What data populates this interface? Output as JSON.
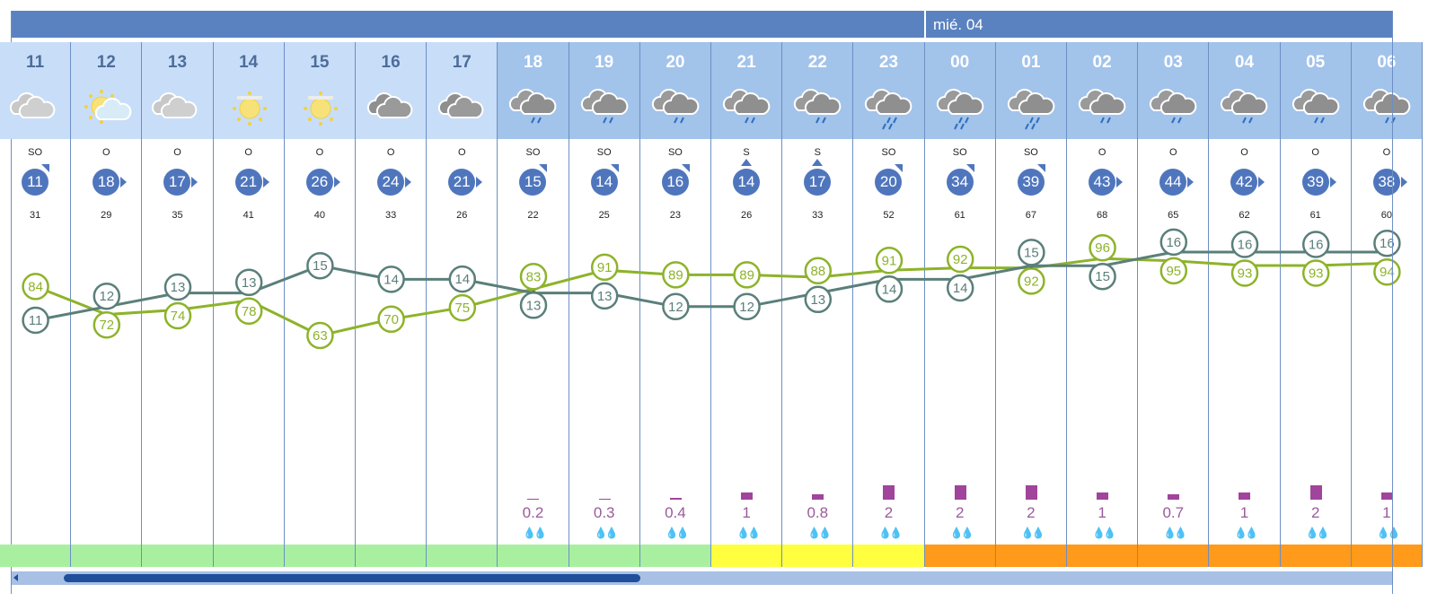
{
  "header": {
    "date_label": "mié. 04"
  },
  "colors": {
    "temperature": "#5a7f7a",
    "humidity": "#8db32a",
    "wind": "#4f76bd",
    "precip": "#a0449c",
    "risk_green": "#a8f0a0",
    "risk_yellow": "#ffff40",
    "risk_orange": "#ff9a1a"
  },
  "hours": [
    {
      "hour": "11",
      "sky": "cloudy",
      "wind_dir": "SO",
      "wind": "11",
      "arrow": "ne",
      "gust": "31",
      "temp": 11,
      "hum": 84,
      "precip": null,
      "risk": "green"
    },
    {
      "hour": "12",
      "sky": "partly-sunny",
      "wind_dir": "O",
      "wind": "18",
      "arrow": "e",
      "gust": "29",
      "temp": 12,
      "hum": 72,
      "precip": null,
      "risk": "green"
    },
    {
      "hour": "13",
      "sky": "cloudy",
      "wind_dir": "O",
      "wind": "17",
      "arrow": "e",
      "gust": "35",
      "temp": 13,
      "hum": 74,
      "precip": null,
      "risk": "green"
    },
    {
      "hour": "14",
      "sky": "hazy-sun",
      "wind_dir": "O",
      "wind": "21",
      "arrow": "e",
      "gust": "41",
      "temp": 13,
      "hum": 78,
      "precip": null,
      "risk": "green"
    },
    {
      "hour": "15",
      "sky": "hazy-sun",
      "wind_dir": "O",
      "wind": "26",
      "arrow": "e",
      "gust": "40",
      "temp": 15,
      "hum": 63,
      "precip": null,
      "risk": "green"
    },
    {
      "hour": "16",
      "sky": "overcast",
      "wind_dir": "O",
      "wind": "24",
      "arrow": "e",
      "gust": "33",
      "temp": 14,
      "hum": 70,
      "precip": null,
      "risk": "green"
    },
    {
      "hour": "17",
      "sky": "overcast",
      "wind_dir": "O",
      "wind": "21",
      "arrow": "e",
      "gust": "26",
      "temp": 14,
      "hum": 75,
      "precip": null,
      "risk": "green"
    },
    {
      "hour": "18",
      "sky": "light-rain",
      "wind_dir": "SO",
      "wind": "15",
      "arrow": "ne",
      "gust": "22",
      "temp": 13,
      "hum": 83,
      "precip": "0.2",
      "risk": "green"
    },
    {
      "hour": "19",
      "sky": "light-rain",
      "wind_dir": "SO",
      "wind": "14",
      "arrow": "ne",
      "gust": "25",
      "temp": 13,
      "hum": 91,
      "precip": "0.3",
      "risk": "green"
    },
    {
      "hour": "20",
      "sky": "light-rain",
      "wind_dir": "SO",
      "wind": "16",
      "arrow": "ne",
      "gust": "23",
      "temp": 12,
      "hum": 89,
      "precip": "0.4",
      "risk": "green"
    },
    {
      "hour": "21",
      "sky": "light-rain",
      "wind_dir": "S",
      "wind": "14",
      "arrow": "n",
      "gust": "26",
      "temp": 12,
      "hum": 89,
      "precip": "1",
      "risk": "yellow"
    },
    {
      "hour": "22",
      "sky": "light-rain",
      "wind_dir": "S",
      "wind": "17",
      "arrow": "n",
      "gust": "33",
      "temp": 13,
      "hum": 88,
      "precip": "0.8",
      "risk": "yellow"
    },
    {
      "hour": "23",
      "sky": "rain",
      "wind_dir": "SO",
      "wind": "20",
      "arrow": "ne",
      "gust": "52",
      "temp": 14,
      "hum": 91,
      "precip": "2",
      "risk": "yellow"
    },
    {
      "hour": "00",
      "sky": "rain",
      "wind_dir": "SO",
      "wind": "34",
      "arrow": "ne",
      "gust": "61",
      "temp": 14,
      "hum": 92,
      "precip": "2",
      "risk": "orange"
    },
    {
      "hour": "01",
      "sky": "rain",
      "wind_dir": "SO",
      "wind": "39",
      "arrow": "ne",
      "gust": "67",
      "temp": 15,
      "hum": 92,
      "precip": "2",
      "risk": "orange"
    },
    {
      "hour": "02",
      "sky": "light-rain",
      "wind_dir": "O",
      "wind": "43",
      "arrow": "e",
      "gust": "68",
      "temp": 15,
      "hum": 96,
      "precip": "1",
      "risk": "orange"
    },
    {
      "hour": "03",
      "sky": "light-rain",
      "wind_dir": "O",
      "wind": "44",
      "arrow": "e",
      "gust": "65",
      "temp": 16,
      "hum": 95,
      "precip": "0.7",
      "risk": "orange"
    },
    {
      "hour": "04",
      "sky": "light-rain",
      "wind_dir": "O",
      "wind": "42",
      "arrow": "e",
      "gust": "62",
      "temp": 16,
      "hum": 93,
      "precip": "1",
      "risk": "orange"
    },
    {
      "hour": "05",
      "sky": "light-rain",
      "wind_dir": "O",
      "wind": "39",
      "arrow": "e",
      "gust": "61",
      "temp": 16,
      "hum": 93,
      "precip": "2",
      "risk": "orange"
    },
    {
      "hour": "06",
      "sky": "light-rain",
      "wind_dir": "O",
      "wind": "38",
      "arrow": "e",
      "gust": "60",
      "temp": 16,
      "hum": 94,
      "precip": "1",
      "risk": "orange"
    }
  ]
}
